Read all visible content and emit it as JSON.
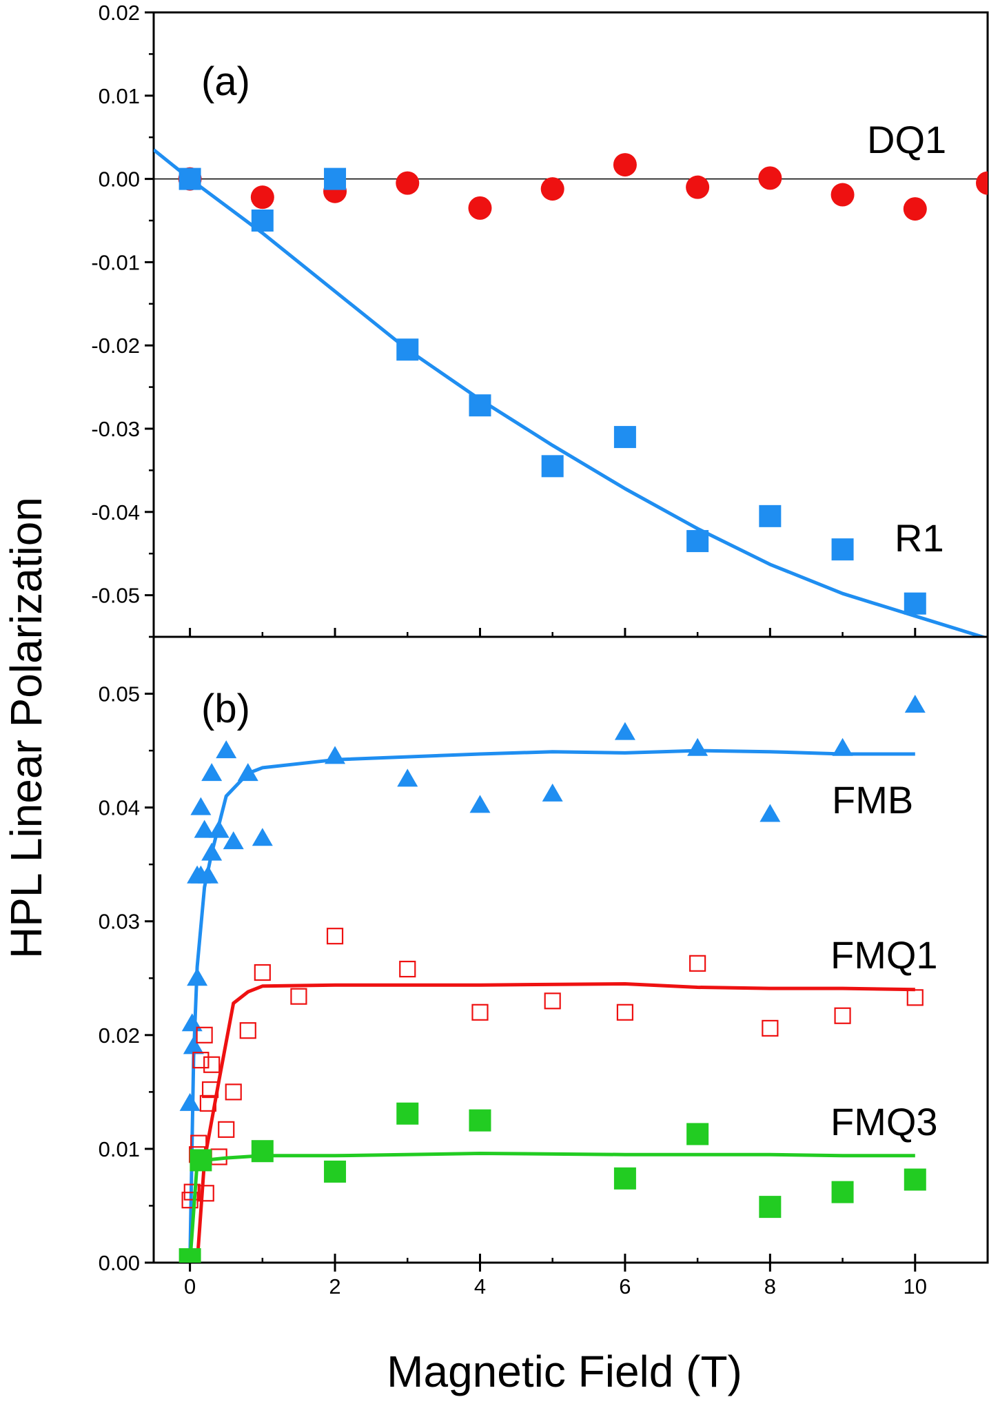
{
  "chart_data": [
    {
      "panel": "(a)",
      "type": "scatter",
      "xlim": [
        -0.5,
        11
      ],
      "ylim": [
        -0.055,
        0.02
      ],
      "yticks": [
        "0.02",
        "0.01",
        "0.00",
        "-0.01",
        "-0.02",
        "-0.03",
        "-0.04",
        "-0.05"
      ],
      "ytick_values": [
        0.02,
        0.01,
        0.0,
        -0.01,
        -0.02,
        -0.03,
        -0.04,
        -0.05
      ],
      "zero_line": true,
      "series": [
        {
          "name": "DQ1",
          "marker": "circle",
          "color": "#ee1111",
          "points": [
            [
              0,
              0.0
            ],
            [
              1,
              -0.0022
            ],
            [
              2,
              -0.0015
            ],
            [
              3,
              -0.0005
            ],
            [
              4,
              -0.0035
            ],
            [
              5,
              -0.0012
            ],
            [
              6,
              0.0017
            ],
            [
              7,
              -0.001
            ],
            [
              8,
              0.0001
            ],
            [
              9,
              -0.0019
            ],
            [
              10,
              -0.0036
            ],
            [
              11,
              -0.0005
            ]
          ]
        },
        {
          "name": "R1",
          "marker": "square",
          "color": "#1f8ef1",
          "points": [
            [
              0,
              0.0
            ],
            [
              1,
              -0.005
            ],
            [
              2,
              0.0
            ],
            [
              3,
              -0.0205
            ],
            [
              4,
              -0.0272
            ],
            [
              5,
              -0.0345
            ],
            [
              6,
              -0.031
            ],
            [
              7,
              -0.0435
            ],
            [
              8,
              -0.0405
            ],
            [
              9,
              -0.0445
            ],
            [
              10,
              -0.051
            ]
          ],
          "fit": [
            [
              -0.5,
              0.0035
            ],
            [
              0,
              0.0
            ],
            [
              1,
              -0.0065
            ],
            [
              2,
              -0.0135
            ],
            [
              3,
              -0.0205
            ],
            [
              4,
              -0.0265
            ],
            [
              5,
              -0.032
            ],
            [
              6,
              -0.0372
            ],
            [
              7,
              -0.042
            ],
            [
              8,
              -0.0463
            ],
            [
              9,
              -0.0498
            ],
            [
              10,
              -0.0525
            ],
            [
              11,
              -0.0552
            ]
          ]
        }
      ]
    },
    {
      "panel": "(b)",
      "type": "scatter",
      "xlim": [
        -0.5,
        11
      ],
      "ylim": [
        0,
        0.055
      ],
      "yticks": [
        "0.05",
        "0.04",
        "0.03",
        "0.02",
        "0.01",
        "0.00"
      ],
      "ytick_values": [
        0.05,
        0.04,
        0.03,
        0.02,
        0.01,
        0.0
      ],
      "series": [
        {
          "name": "FMB",
          "marker": "triangle",
          "color": "#1f8ef1",
          "points": [
            [
              0,
              0.014
            ],
            [
              0.03,
              0.021
            ],
            [
              0.05,
              0.019
            ],
            [
              0.1,
              0.025
            ],
            [
              0.1,
              0.034
            ],
            [
              0.15,
              0.034
            ],
            [
              0.15,
              0.04
            ],
            [
              0.2,
              0.038
            ],
            [
              0.25,
              0.034
            ],
            [
              0.3,
              0.036
            ],
            [
              0.3,
              0.043
            ],
            [
              0.4,
              0.038
            ],
            [
              0.5,
              0.045
            ],
            [
              0.6,
              0.037
            ],
            [
              0.8,
              0.043
            ],
            [
              1,
              0.0373
            ],
            [
              2,
              0.0445
            ],
            [
              3,
              0.0425
            ],
            [
              4,
              0.0402
            ],
            [
              5,
              0.0412
            ],
            [
              6,
              0.0466
            ],
            [
              7,
              0.0452
            ],
            [
              8,
              0.0394
            ],
            [
              9,
              0.0452
            ],
            [
              10,
              0.049
            ]
          ],
          "fit": [
            [
              0,
              0.0
            ],
            [
              0.05,
              0.018
            ],
            [
              0.1,
              0.026
            ],
            [
              0.2,
              0.033
            ],
            [
              0.3,
              0.036
            ],
            [
              0.5,
              0.041
            ],
            [
              0.8,
              0.043
            ],
            [
              1,
              0.0435
            ],
            [
              2,
              0.0442
            ],
            [
              4,
              0.0447
            ],
            [
              5,
              0.0449
            ],
            [
              6,
              0.0448
            ],
            [
              7,
              0.045
            ],
            [
              8,
              0.0449
            ],
            [
              9,
              0.0447
            ],
            [
              10,
              0.0447
            ]
          ]
        },
        {
          "name": "FMQ1",
          "marker": "open-square",
          "color": "#ee1111",
          "points": [
            [
              0,
              0.0055
            ],
            [
              0.03,
              0.0062
            ],
            [
              0.1,
              0.0095
            ],
            [
              0.12,
              0.0105
            ],
            [
              0.15,
              0.0178
            ],
            [
              0.2,
              0.02
            ],
            [
              0.22,
              0.0061
            ],
            [
              0.25,
              0.014
            ],
            [
              0.28,
              0.0152
            ],
            [
              0.3,
              0.0174
            ],
            [
              0.4,
              0.0093
            ],
            [
              0.5,
              0.0117
            ],
            [
              0.6,
              0.015
            ],
            [
              0.8,
              0.0204
            ],
            [
              1,
              0.0255
            ],
            [
              1.5,
              0.0234
            ],
            [
              2,
              0.0287
            ],
            [
              3,
              0.0258
            ],
            [
              4,
              0.022
            ],
            [
              5,
              0.023
            ],
            [
              6,
              0.022
            ],
            [
              7,
              0.0263
            ],
            [
              8,
              0.0206
            ],
            [
              9,
              0.0217
            ],
            [
              10,
              0.0233
            ]
          ],
          "fit": [
            [
              0.1,
              0.0
            ],
            [
              0.2,
              0.009
            ],
            [
              0.4,
              0.016
            ],
            [
              0.6,
              0.0228
            ],
            [
              0.8,
              0.0238
            ],
            [
              1,
              0.0243
            ],
            [
              2,
              0.0244
            ],
            [
              4,
              0.0244
            ],
            [
              6,
              0.0245
            ],
            [
              7,
              0.0242
            ],
            [
              8,
              0.0241
            ],
            [
              9,
              0.0241
            ],
            [
              10,
              0.024
            ]
          ]
        },
        {
          "name": "FMQ3",
          "marker": "square",
          "color": "#22cc22",
          "points": [
            [
              0,
              0.0003
            ],
            [
              0.15,
              0.009
            ],
            [
              1,
              0.0098
            ],
            [
              2,
              0.008
            ],
            [
              3,
              0.0131
            ],
            [
              4,
              0.0125
            ],
            [
              6,
              0.0074
            ],
            [
              7,
              0.0113
            ],
            [
              8,
              0.0049
            ],
            [
              9,
              0.0062
            ],
            [
              10,
              0.0073
            ]
          ],
          "fit": [
            [
              0,
              0.0
            ],
            [
              0.1,
              0.0088
            ],
            [
              0.2,
              0.009
            ],
            [
              0.5,
              0.0092
            ],
            [
              1,
              0.0094
            ],
            [
              2,
              0.0094
            ],
            [
              4,
              0.0096
            ],
            [
              6,
              0.0095
            ],
            [
              8,
              0.0095
            ],
            [
              9,
              0.0094
            ],
            [
              10,
              0.0094
            ]
          ]
        }
      ]
    }
  ],
  "x_axis": {
    "title": "Magnetic Field  (T)",
    "ticks": [
      "0",
      "2",
      "4",
      "6",
      "8",
      "10"
    ],
    "tick_values": [
      0,
      2,
      4,
      6,
      8,
      10
    ]
  },
  "y_axis": {
    "title": "HPL Linear Polarization"
  },
  "labels": {
    "panel_a": "(a)",
    "panel_b": "(b)",
    "dq1": "DQ1",
    "r1": "R1",
    "fmb": "FMB",
    "fmq1": "FMQ1",
    "fmq3": "FMQ3"
  }
}
